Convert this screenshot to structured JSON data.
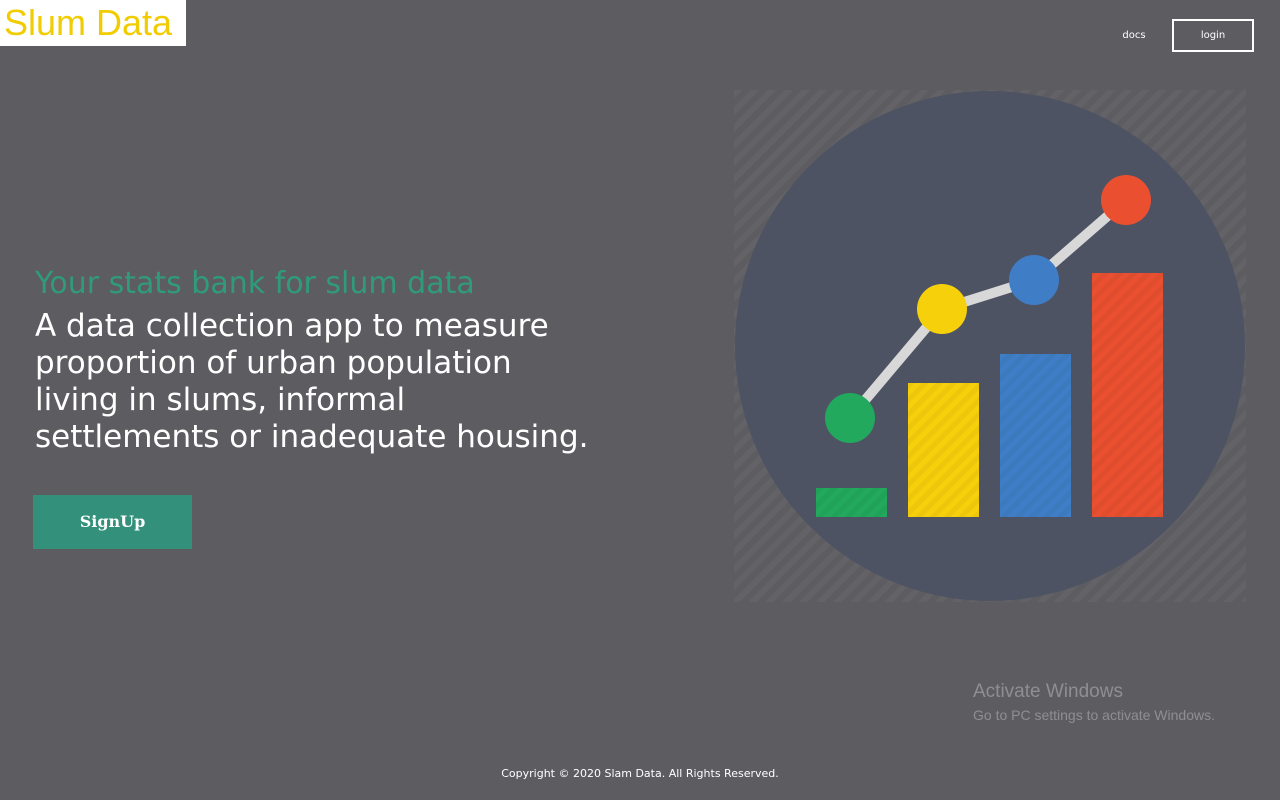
{
  "header": {
    "logo_text": "Slum Data",
    "nav": {
      "docs_label": "docs",
      "login_label": "login"
    }
  },
  "hero": {
    "tagline": "Your stats bank for slum data",
    "description": "A data collection app to measure proportion of urban population living in slums, informal settlements or inadequate housing.",
    "signup_label": "SignUp"
  },
  "illustration": {
    "icon": "growth-chart-icon",
    "bar_colors": [
      "#22a95d",
      "#f7d00c",
      "#3f7ec6",
      "#ea5030"
    ],
    "bar_levels": [
      0.12,
      0.55,
      0.67,
      1.0
    ],
    "circle_color": "#4e5364"
  },
  "footer": {
    "copyright": "Copyright © 2020 Slam Data. All Rights Reserved."
  },
  "os_overlay": {
    "title": "Activate Windows",
    "subtitle": "Go to PC settings to activate Windows."
  },
  "colors": {
    "background": "#5d5c60",
    "accent": "#2f9b7c",
    "button": "#32907b",
    "logo": "#f0cc00"
  }
}
